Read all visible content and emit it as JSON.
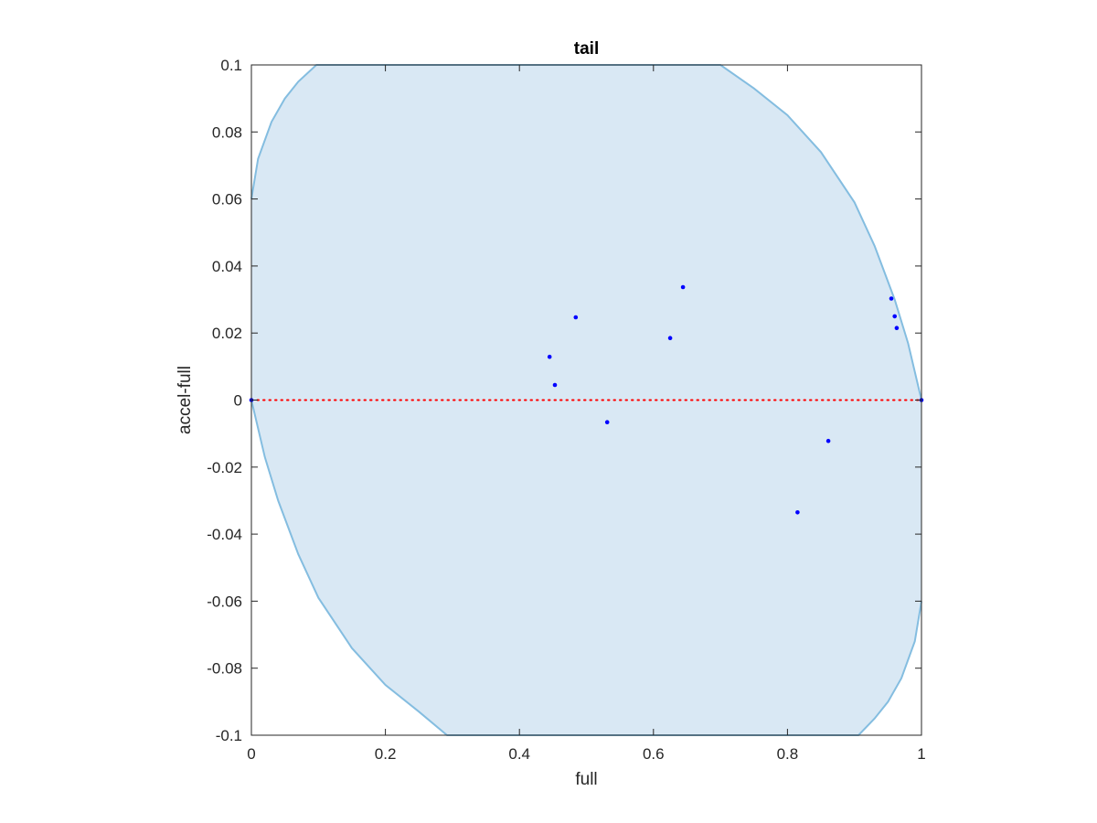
{
  "chart_data": {
    "type": "scatter",
    "title": "tail",
    "xlabel": "full",
    "ylabel": "accel-full",
    "xlim": [
      0,
      1
    ],
    "ylim": [
      -0.1,
      0.1
    ],
    "xticks": [
      0,
      0.2,
      0.4,
      0.6,
      0.8,
      1
    ],
    "xtick_labels": [
      "0",
      "0.2",
      "0.4",
      "0.6",
      "0.8",
      "1"
    ],
    "yticks": [
      -0.1,
      -0.08,
      -0.06,
      -0.04,
      -0.02,
      0,
      0.02,
      0.04,
      0.06,
      0.08,
      0.1
    ],
    "ytick_labels": [
      "-0.1",
      "-0.08",
      "-0.06",
      "-0.04",
      "-0.02",
      "0",
      "0.02",
      "0.04",
      "0.06",
      "0.08",
      "0.1"
    ],
    "grid": false,
    "region": {
      "description_color": "#d9e8f4",
      "fill": "#d9e8f4",
      "edge": "#84bde0",
      "upper": [
        [
          0,
          0.06
        ],
        [
          0.01,
          0.072
        ],
        [
          0.03,
          0.083
        ],
        [
          0.05,
          0.09
        ],
        [
          0.07,
          0.095
        ],
        [
          0.097,
          0.1
        ],
        [
          0.7,
          0.1
        ],
        [
          0.75,
          0.093
        ],
        [
          0.8,
          0.085
        ],
        [
          0.85,
          0.074
        ],
        [
          0.9,
          0.059
        ],
        [
          0.93,
          0.046
        ],
        [
          0.96,
          0.03
        ],
        [
          0.98,
          0.017
        ],
        [
          1,
          0
        ]
      ],
      "lower": [
        [
          0,
          0
        ],
        [
          0.02,
          -0.017
        ],
        [
          0.04,
          -0.03
        ],
        [
          0.07,
          -0.046
        ],
        [
          0.1,
          -0.059
        ],
        [
          0.15,
          -0.074
        ],
        [
          0.2,
          -0.085
        ],
        [
          0.25,
          -0.093
        ],
        [
          0.292,
          -0.1
        ],
        [
          0.906,
          -0.1
        ],
        [
          0.93,
          -0.095
        ],
        [
          0.95,
          -0.09
        ],
        [
          0.97,
          -0.083
        ],
        [
          0.99,
          -0.072
        ],
        [
          1,
          -0.06
        ]
      ]
    },
    "reference_line": {
      "y": 0,
      "color": "#ff0000",
      "style": "dotted"
    },
    "series": [
      {
        "color": "#0000ff",
        "points": [
          [
            0,
            0
          ],
          [
            0.445,
            0.0129
          ],
          [
            0.453,
            0.0045
          ],
          [
            0.484,
            0.0247
          ],
          [
            0.531,
            -0.0066
          ],
          [
            0.625,
            0.0185
          ],
          [
            0.644,
            0.0337
          ],
          [
            0.815,
            -0.0335
          ],
          [
            0.861,
            -0.0122
          ],
          [
            0.955,
            0.0303
          ],
          [
            0.96,
            0.025
          ],
          [
            0.963,
            0.0215
          ],
          [
            1,
            0
          ]
        ]
      }
    ]
  }
}
